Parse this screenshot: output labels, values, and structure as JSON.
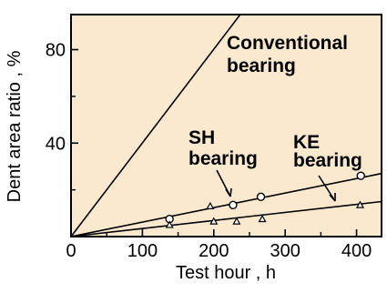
{
  "chart_data": {
    "type": "line",
    "title": "",
    "xlabel": "Test hour , h",
    "ylabel": "Dent area ratio , %",
    "xlim": [
      0,
      435
    ],
    "ylim": [
      0,
      95
    ],
    "x_ticks": [
      0,
      100,
      200,
      300,
      400
    ],
    "x_tick_labels": [
      "0",
      "100",
      "200",
      "300",
      "400"
    ],
    "y_ticks": [
      40,
      80
    ],
    "y_tick_labels": [
      "40",
      "80"
    ],
    "grid": false,
    "colors": {
      "plot_background": "#fae8cf",
      "line": "#000000"
    },
    "series": [
      {
        "name": "Conventional bearing",
        "x": [
          0,
          237
        ],
        "y": [
          0,
          95
        ]
      },
      {
        "name": "SH bearing",
        "marker": "circle",
        "x": [
          0,
          435
        ],
        "y": [
          0,
          27
        ],
        "points": [
          [
            138,
            7.5
          ],
          [
            227,
            13.5
          ],
          [
            266,
            17
          ],
          [
            406,
            26
          ]
        ]
      },
      {
        "name": "KE bearing",
        "marker": "triangle",
        "x": [
          0,
          435
        ],
        "y": [
          0,
          15
        ],
        "points": [
          [
            138,
            5
          ],
          [
            195,
            13
          ],
          [
            200,
            6.5
          ],
          [
            232,
            6.5
          ],
          [
            268,
            7.5
          ],
          [
            405,
            13.5
          ]
        ]
      }
    ],
    "annotations": [
      {
        "lines": [
          "Conventional",
          "bearing"
        ]
      },
      {
        "lines": [
          "SH",
          "bearing"
        ]
      },
      {
        "lines": [
          "KE",
          "bearing"
        ]
      }
    ]
  }
}
